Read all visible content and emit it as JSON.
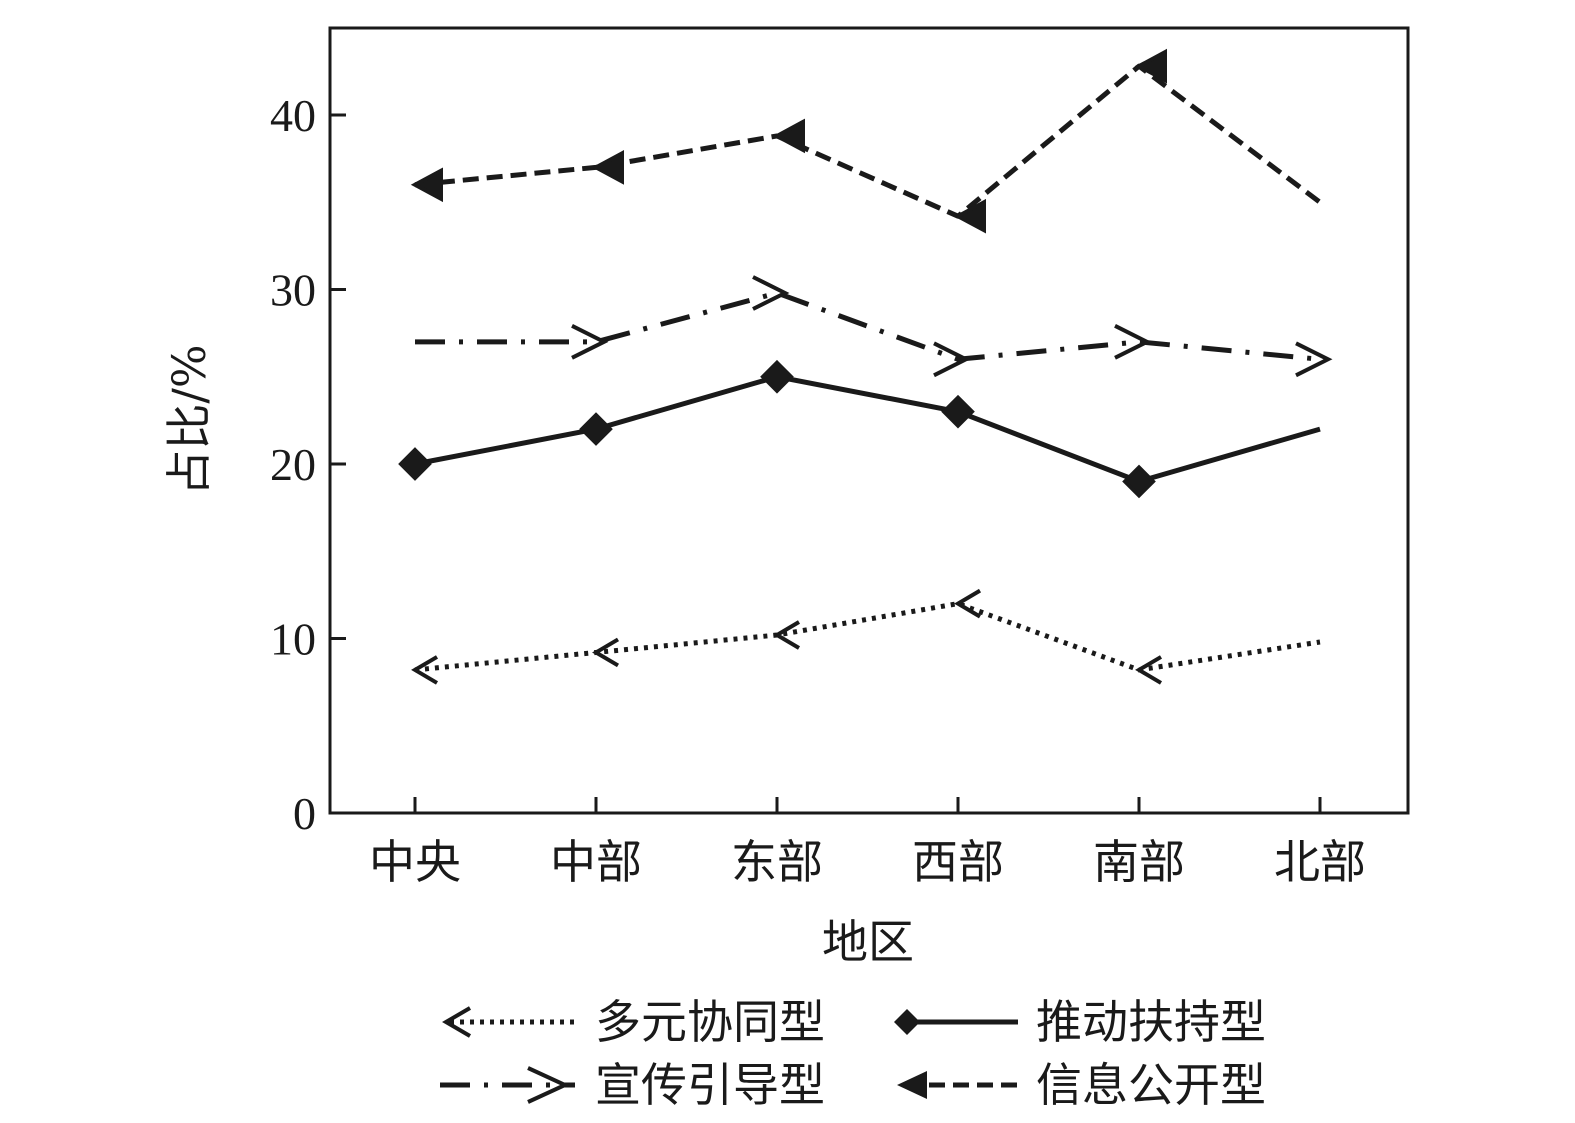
{
  "chart_data": {
    "type": "line",
    "title": "",
    "xlabel": "地区",
    "ylabel": "占比/%",
    "categories": [
      "中央",
      "中部",
      "东部",
      "西部",
      "南部",
      "北部"
    ],
    "ylim": [
      0,
      45
    ],
    "yticks": [
      0,
      10,
      20,
      30,
      40
    ],
    "grid": false,
    "legend_position": "bottom",
    "series": [
      {
        "name": "多元协同型",
        "style": "dotted",
        "marker": "open-arrow-left",
        "color": "#1a1a1a",
        "values": [
          8.2,
          9.2,
          10.2,
          12.0,
          8.2,
          9.8
        ]
      },
      {
        "name": "推动扶持型",
        "style": "solid",
        "marker": "diamond",
        "color": "#1a1a1a",
        "values": [
          20.0,
          22.0,
          25.0,
          23.0,
          19.0,
          22.0
        ]
      },
      {
        "name": "宣传引导型",
        "style": "dash-dot",
        "marker": "open-arrow-right",
        "color": "#1a1a1a",
        "values": [
          27.0,
          27.0,
          29.8,
          26.0,
          27.0,
          26.0
        ]
      },
      {
        "name": "信息公开型",
        "style": "dashed",
        "marker": "filled-arrow-left",
        "color": "#1a1a1a",
        "values": [
          36.0,
          37.0,
          38.8,
          34.2,
          42.8,
          35.0
        ]
      }
    ]
  }
}
